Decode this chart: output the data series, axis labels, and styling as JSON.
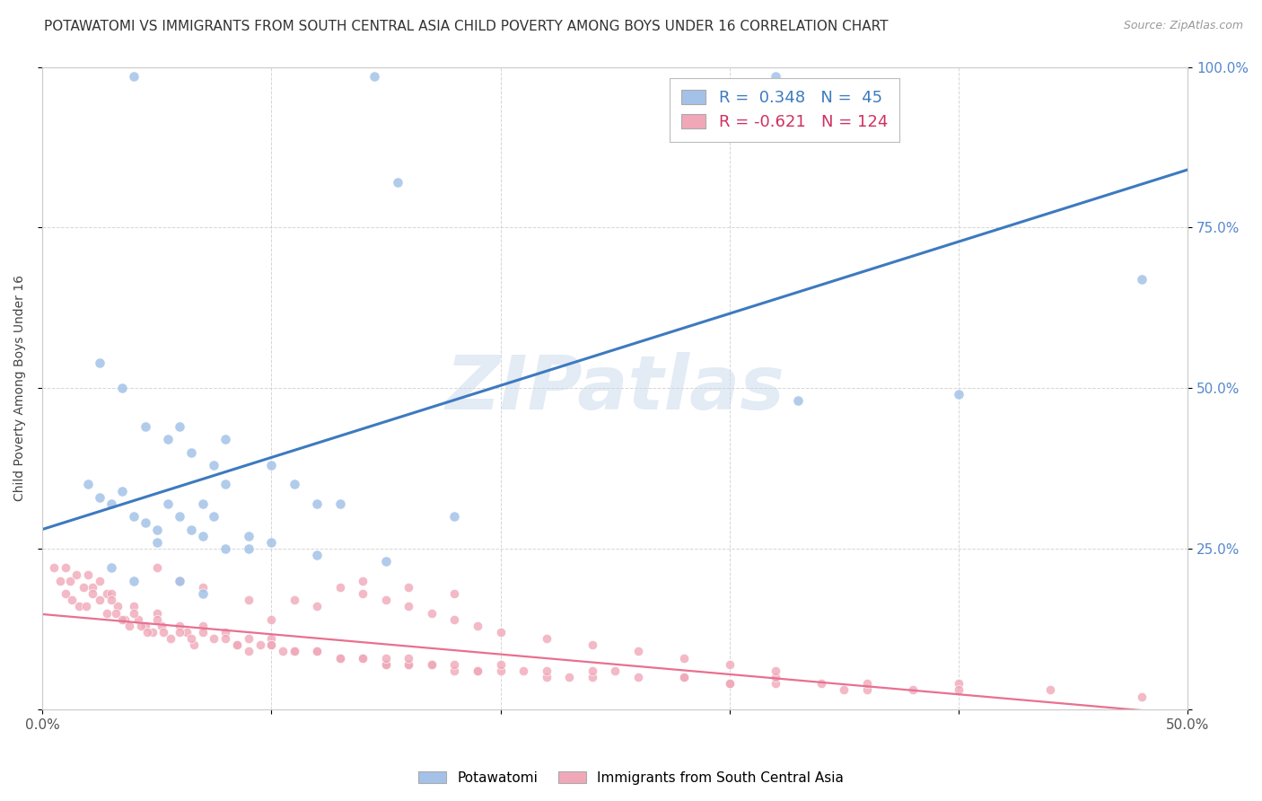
{
  "title": "POTAWATOMI VS IMMIGRANTS FROM SOUTH CENTRAL ASIA CHILD POVERTY AMONG BOYS UNDER 16 CORRELATION CHART",
  "source": "Source: ZipAtlas.com",
  "ylabel": "Child Poverty Among Boys Under 16",
  "watermark": "ZIPatlas",
  "xlim": [
    0.0,
    0.5
  ],
  "ylim": [
    0.0,
    1.0
  ],
  "xticks": [
    0.0,
    0.1,
    0.2,
    0.3,
    0.4,
    0.5
  ],
  "yticks": [
    0.0,
    0.25,
    0.5,
    0.75,
    1.0
  ],
  "xticklabels": [
    "0.0%",
    "",
    "",
    "",
    "",
    "50.0%"
  ],
  "yticklabels_right": [
    "",
    "25.0%",
    "50.0%",
    "75.0%",
    "100.0%"
  ],
  "blue_R": 0.348,
  "blue_N": 45,
  "pink_R": -0.621,
  "pink_N": 124,
  "blue_color": "#a4c2e8",
  "pink_color": "#f0a8b8",
  "blue_line_color": "#3d7abf",
  "pink_line_color": "#e87090",
  "legend_blue_label": "Potawatomi",
  "legend_pink_label": "Immigrants from South Central Asia",
  "blue_trendline_x": [
    0.0,
    0.5
  ],
  "blue_trendline_y": [
    0.28,
    0.84
  ],
  "pink_trendline_x": [
    0.0,
    0.5
  ],
  "pink_trendline_y": [
    0.148,
    -0.008
  ],
  "background_color": "#ffffff",
  "grid_color": "#cccccc",
  "title_fontsize": 11,
  "axis_label_fontsize": 10,
  "tick_fontsize": 11,
  "watermark_fontsize": 60,
  "watermark_color": "#c8d8ec",
  "watermark_alpha": 0.5,
  "tick_color_right": "#5588cc",
  "tick_color_x": "#555555",
  "blue_scatter_x": [
    0.04,
    0.145,
    0.32,
    0.155,
    0.48,
    0.4,
    0.33,
    0.025,
    0.035,
    0.045,
    0.055,
    0.065,
    0.075,
    0.02,
    0.025,
    0.03,
    0.035,
    0.04,
    0.045,
    0.05,
    0.055,
    0.06,
    0.065,
    0.07,
    0.075,
    0.08,
    0.09,
    0.1,
    0.11,
    0.12,
    0.13,
    0.06,
    0.08,
    0.1,
    0.05,
    0.07,
    0.09,
    0.12,
    0.15,
    0.18,
    0.08,
    0.03,
    0.04,
    0.06,
    0.07
  ],
  "blue_scatter_y": [
    0.985,
    0.985,
    0.985,
    0.82,
    0.67,
    0.49,
    0.48,
    0.54,
    0.5,
    0.44,
    0.42,
    0.4,
    0.38,
    0.35,
    0.33,
    0.32,
    0.34,
    0.3,
    0.29,
    0.28,
    0.32,
    0.3,
    0.28,
    0.32,
    0.3,
    0.35,
    0.27,
    0.26,
    0.35,
    0.32,
    0.32,
    0.44,
    0.42,
    0.38,
    0.26,
    0.27,
    0.25,
    0.24,
    0.23,
    0.3,
    0.25,
    0.22,
    0.2,
    0.2,
    0.18
  ],
  "pink_scatter_x": [
    0.005,
    0.008,
    0.01,
    0.012,
    0.015,
    0.018,
    0.02,
    0.022,
    0.025,
    0.028,
    0.01,
    0.013,
    0.016,
    0.019,
    0.022,
    0.025,
    0.028,
    0.03,
    0.033,
    0.036,
    0.03,
    0.032,
    0.035,
    0.038,
    0.04,
    0.042,
    0.045,
    0.048,
    0.05,
    0.052,
    0.04,
    0.043,
    0.046,
    0.05,
    0.053,
    0.056,
    0.06,
    0.063,
    0.066,
    0.07,
    0.06,
    0.065,
    0.07,
    0.075,
    0.08,
    0.085,
    0.09,
    0.095,
    0.1,
    0.105,
    0.08,
    0.085,
    0.09,
    0.1,
    0.11,
    0.12,
    0.13,
    0.14,
    0.15,
    0.16,
    0.1,
    0.11,
    0.12,
    0.13,
    0.14,
    0.15,
    0.16,
    0.17,
    0.18,
    0.19,
    0.15,
    0.16,
    0.17,
    0.18,
    0.19,
    0.2,
    0.21,
    0.22,
    0.23,
    0.24,
    0.2,
    0.22,
    0.24,
    0.26,
    0.28,
    0.3,
    0.32,
    0.34,
    0.36,
    0.38,
    0.25,
    0.28,
    0.32,
    0.36,
    0.4,
    0.44,
    0.48,
    0.3,
    0.35,
    0.4,
    0.1,
    0.11,
    0.12,
    0.13,
    0.14,
    0.15,
    0.16,
    0.17,
    0.18,
    0.19,
    0.2,
    0.22,
    0.24,
    0.26,
    0.28,
    0.3,
    0.32,
    0.14,
    0.16,
    0.18,
    0.05,
    0.06,
    0.07,
    0.09
  ],
  "pink_scatter_y": [
    0.22,
    0.2,
    0.22,
    0.2,
    0.21,
    0.19,
    0.21,
    0.19,
    0.2,
    0.18,
    0.18,
    0.17,
    0.16,
    0.16,
    0.18,
    0.17,
    0.15,
    0.18,
    0.16,
    0.14,
    0.17,
    0.15,
    0.14,
    0.13,
    0.16,
    0.14,
    0.13,
    0.12,
    0.15,
    0.13,
    0.15,
    0.13,
    0.12,
    0.14,
    0.12,
    0.11,
    0.13,
    0.12,
    0.1,
    0.13,
    0.12,
    0.11,
    0.12,
    0.11,
    0.12,
    0.1,
    0.11,
    0.1,
    0.11,
    0.09,
    0.11,
    0.1,
    0.09,
    0.1,
    0.09,
    0.09,
    0.08,
    0.08,
    0.07,
    0.07,
    0.1,
    0.09,
    0.09,
    0.08,
    0.08,
    0.07,
    0.07,
    0.07,
    0.06,
    0.06,
    0.08,
    0.08,
    0.07,
    0.07,
    0.06,
    0.06,
    0.06,
    0.05,
    0.05,
    0.05,
    0.07,
    0.06,
    0.06,
    0.05,
    0.05,
    0.04,
    0.04,
    0.04,
    0.03,
    0.03,
    0.06,
    0.05,
    0.05,
    0.04,
    0.04,
    0.03,
    0.02,
    0.04,
    0.03,
    0.03,
    0.14,
    0.17,
    0.16,
    0.19,
    0.18,
    0.17,
    0.16,
    0.15,
    0.14,
    0.13,
    0.12,
    0.11,
    0.1,
    0.09,
    0.08,
    0.07,
    0.06,
    0.2,
    0.19,
    0.18,
    0.22,
    0.2,
    0.19,
    0.17
  ]
}
